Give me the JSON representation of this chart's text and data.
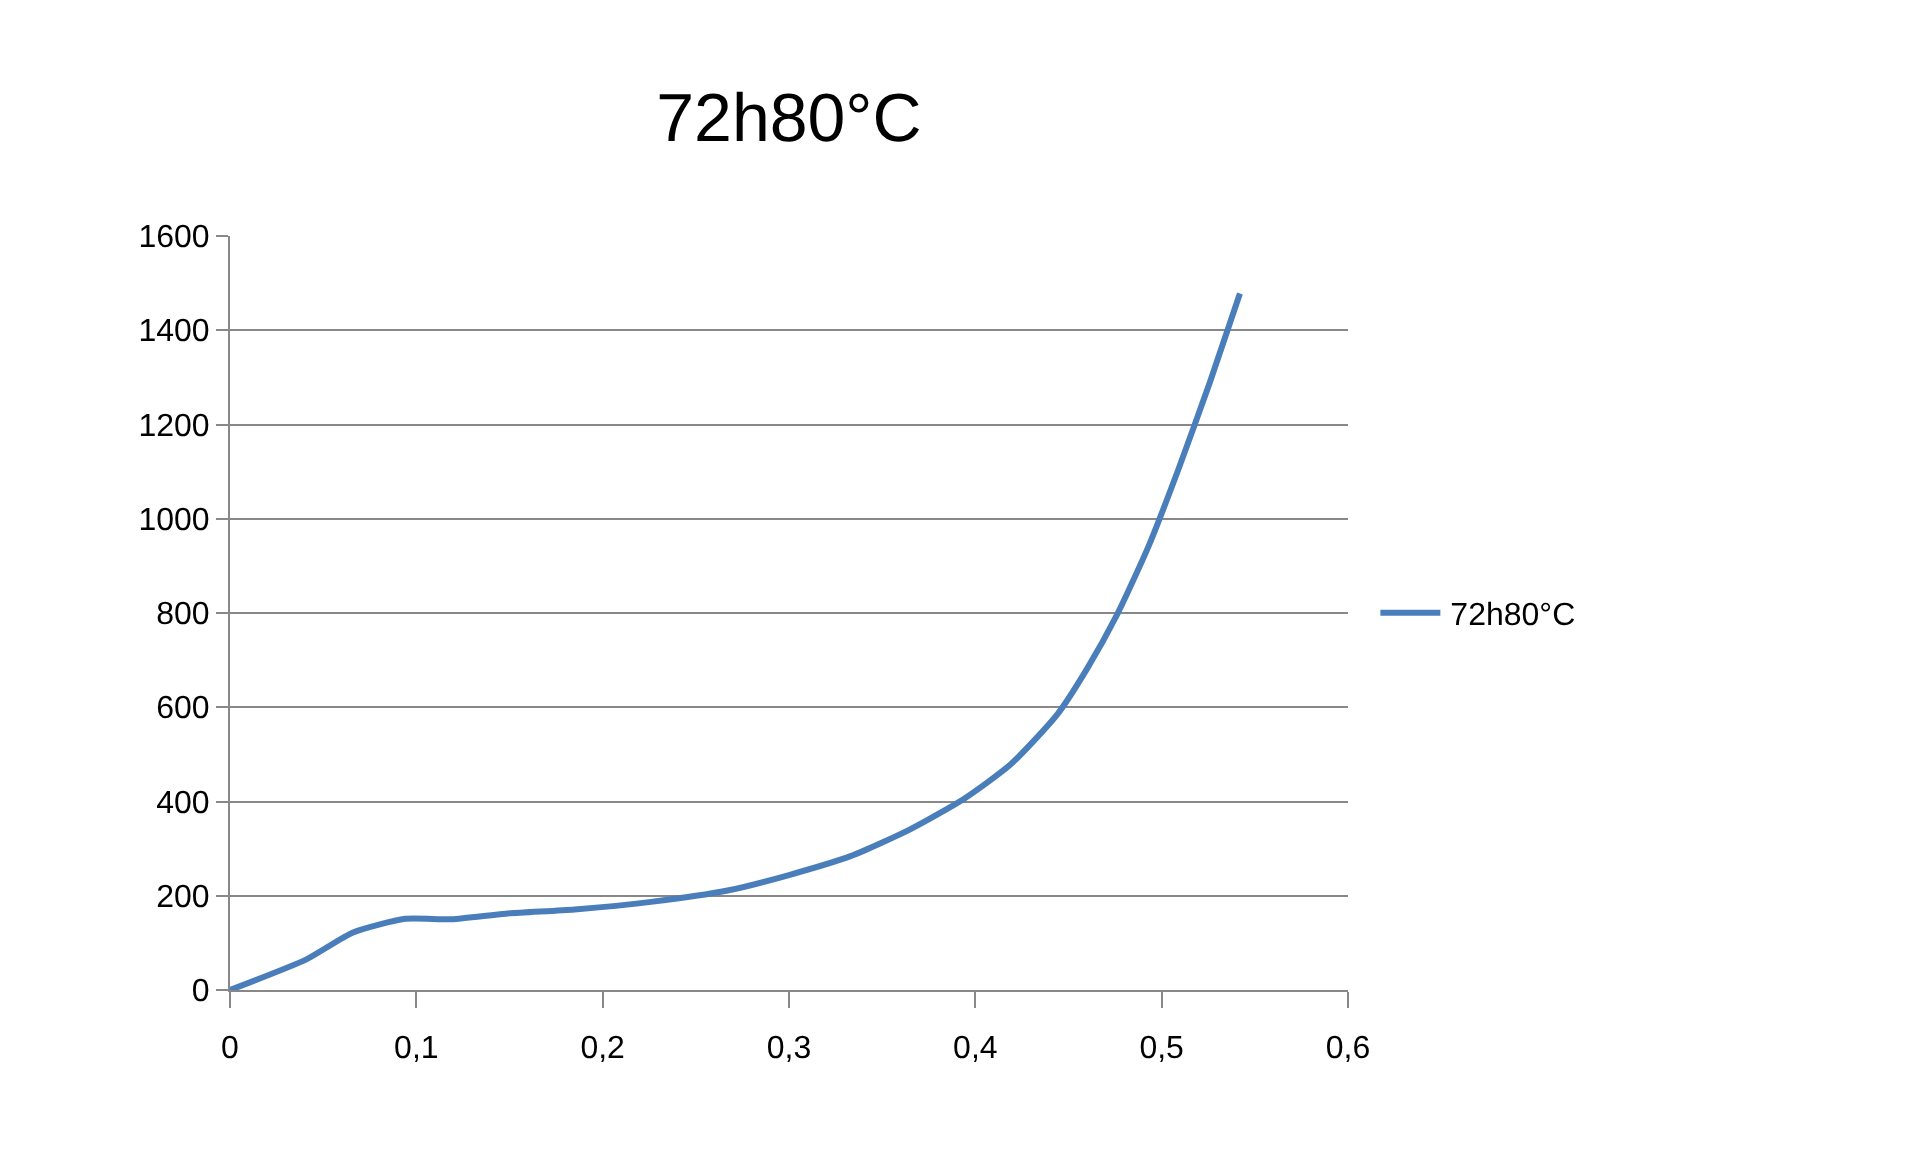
{
  "chart_data": {
    "type": "line",
    "title": "72h80°C",
    "x": [
      0,
      0.041,
      0.066,
      0.094,
      0.119,
      0.148,
      0.185,
      0.226,
      0.267,
      0.3,
      0.333,
      0.365,
      0.394,
      0.419,
      0.444,
      0.46,
      0.476,
      0.493,
      0.509,
      0.526,
      0.542
    ],
    "series": [
      {
        "name": "72h80°C",
        "color": "#4a7ebb",
        "values": [
          0,
          65,
          122,
          151,
          150,
          162,
          171,
          187,
          211,
          244,
          284,
          341,
          406,
          479,
          585,
          682,
          796,
          942,
          1105,
          1291,
          1478
        ]
      }
    ],
    "xlim": [
      0,
      0.6
    ],
    "xticks": [
      {
        "value": 0,
        "label": "0"
      },
      {
        "value": 0.1,
        "label": "0,1"
      },
      {
        "value": 0.2,
        "label": "0,2"
      },
      {
        "value": 0.3,
        "label": "0,3"
      },
      {
        "value": 0.4,
        "label": "0,4"
      },
      {
        "value": 0.5,
        "label": "0,5"
      },
      {
        "value": 0.6,
        "label": "0,6"
      }
    ],
    "ylim": [
      0,
      1600
    ],
    "yticks": [
      0,
      200,
      400,
      600,
      800,
      1000,
      1200,
      1400,
      1600
    ],
    "grid": "y",
    "legend": "right",
    "marker": "none",
    "line_style": "solid"
  }
}
